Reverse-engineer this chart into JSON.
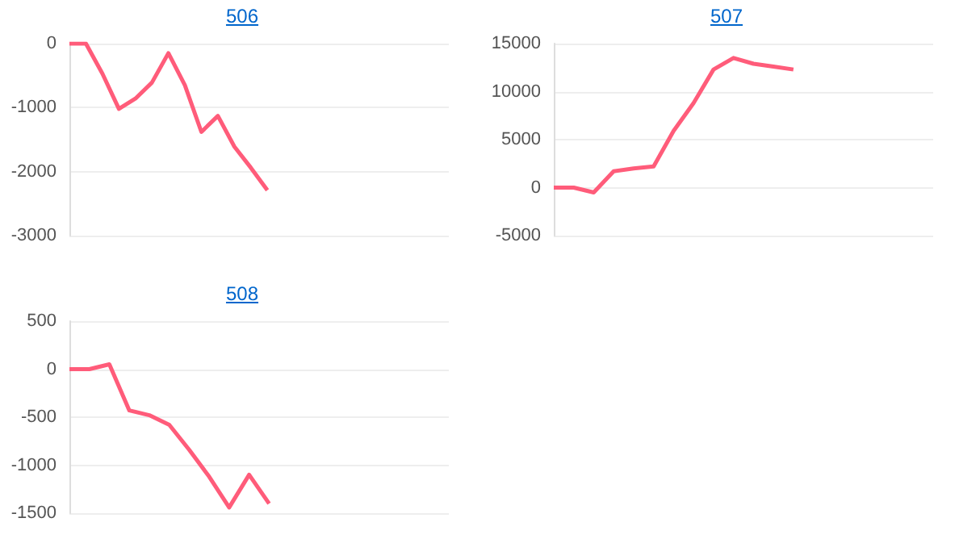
{
  "chart_data": [
    {
      "type": "line",
      "title": "506",
      "categories": [
        null,
        null,
        null,
        null,
        null,
        null,
        null,
        null,
        null,
        null,
        null,
        null,
        null,
        null,
        null,
        null,
        null,
        null,
        null,
        null,
        null,
        null,
        null,
        null
      ],
      "color": "#ff5c7a",
      "marker": "none",
      "grid": "y",
      "tick_labels": "y",
      "values": [
        0,
        0,
        -470,
        -1020,
        -860,
        -610,
        -150,
        -650,
        -1380,
        -1130,
        -1610,
        -1940,
        -2290,
        null,
        null,
        null,
        null,
        null,
        null,
        null,
        null,
        null,
        null,
        null
      ],
      "ylim": [
        -3000,
        0
      ],
      "yticks": [
        -3000,
        -2000,
        -1000,
        0
      ]
    },
    {
      "type": "line",
      "title": "507",
      "categories": [
        null,
        null,
        null,
        null,
        null,
        null,
        null,
        null,
        null,
        null,
        null,
        null,
        null,
        null,
        null,
        null,
        null,
        null,
        null,
        null
      ],
      "color": "#ff5c7a",
      "marker": "none",
      "grid": "y",
      "tick_labels": "y",
      "values": [
        0,
        0,
        -500,
        1700,
        2000,
        2200,
        5900,
        8800,
        12300,
        13500,
        12900,
        12600,
        12300,
        null,
        null,
        null,
        null,
        null,
        null,
        null
      ],
      "ylim": [
        -5000,
        15000
      ],
      "yticks": [
        -5000,
        0,
        5000,
        10000,
        15000
      ]
    },
    {
      "type": "line",
      "title": "508",
      "categories": [
        null,
        null,
        null,
        null,
        null,
        null,
        null,
        null,
        null,
        null,
        null,
        null,
        null,
        null,
        null,
        null,
        null,
        null,
        null,
        null
      ],
      "color": "#ff5c7a",
      "marker": "none",
      "grid": "y",
      "tick_labels": "y",
      "values": [
        0,
        0,
        50,
        -430,
        -480,
        -580,
        -840,
        -1120,
        -1440,
        -1100,
        -1400,
        null,
        null,
        null,
        null,
        null,
        null,
        null,
        null,
        null
      ],
      "ylim": [
        -1500,
        500
      ],
      "yticks": [
        -1500,
        -1000,
        -500,
        0,
        500
      ]
    }
  ]
}
